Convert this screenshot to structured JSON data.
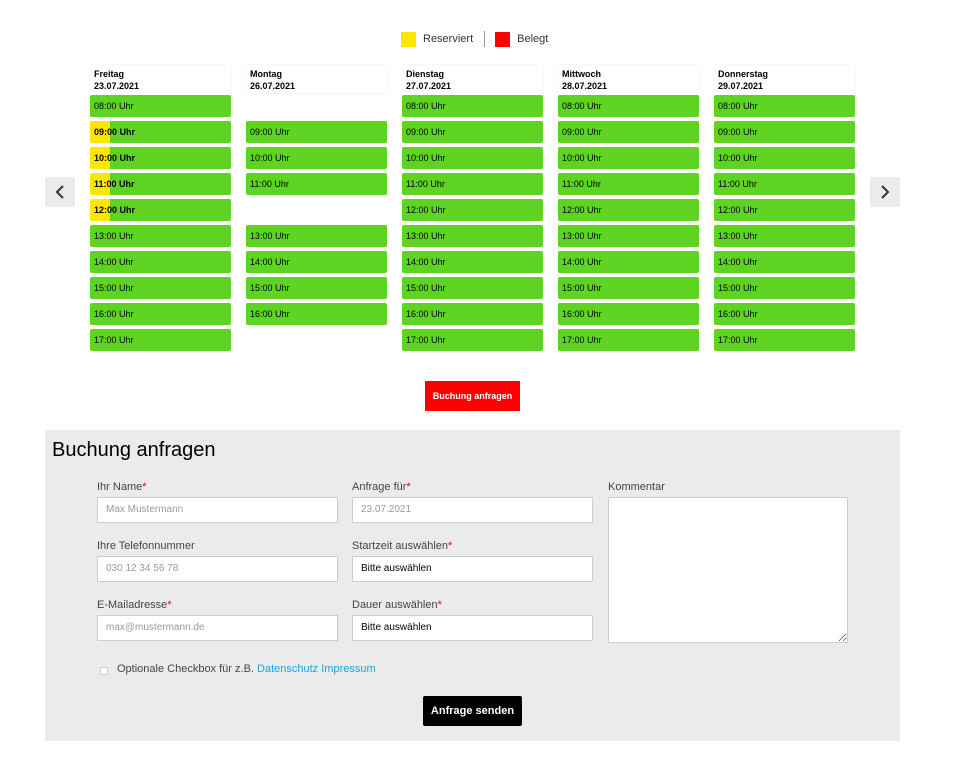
{
  "legend": {
    "reserved": "Reserviert",
    "occupied": "Belegt",
    "reserved_color": "#ffe600",
    "occupied_color": "#ff0000",
    "free_color": "#5fd321"
  },
  "nav": {
    "prev": "‹",
    "next": "›"
  },
  "days": [
    {
      "name": "Freitag",
      "date": "23.07.2021",
      "slots": [
        {
          "t": "08:00 Uhr"
        },
        {
          "t": "09:00 Uhr",
          "r": true
        },
        {
          "t": "10:00 Uhr",
          "r": true
        },
        {
          "t": "11:00 Uhr",
          "r": true
        },
        {
          "t": "12:00 Uhr",
          "r": true
        },
        {
          "t": "13:00 Uhr"
        },
        {
          "t": "14:00 Uhr"
        },
        {
          "t": "15:00 Uhr"
        },
        {
          "t": "16:00 Uhr"
        },
        {
          "t": "17:00 Uhr"
        }
      ]
    },
    {
      "name": "Montag",
      "date": "26.07.2021",
      "slots": [
        null,
        {
          "t": "09:00 Uhr"
        },
        {
          "t": "10:00 Uhr"
        },
        {
          "t": "11:00 Uhr"
        },
        null,
        {
          "t": "13:00 Uhr"
        },
        {
          "t": "14:00 Uhr"
        },
        {
          "t": "15:00 Uhr"
        },
        {
          "t": "16:00 Uhr"
        },
        null
      ]
    },
    {
      "name": "Dienstag",
      "date": "27.07.2021",
      "slots": [
        {
          "t": "08:00 Uhr"
        },
        {
          "t": "09:00 Uhr"
        },
        {
          "t": "10:00 Uhr"
        },
        {
          "t": "11:00 Uhr"
        },
        {
          "t": "12:00 Uhr"
        },
        {
          "t": "13:00 Uhr"
        },
        {
          "t": "14:00 Uhr"
        },
        {
          "t": "15:00 Uhr"
        },
        {
          "t": "16:00 Uhr"
        },
        {
          "t": "17:00 Uhr"
        }
      ]
    },
    {
      "name": "Mittwoch",
      "date": "28.07.2021",
      "slots": [
        {
          "t": "08:00 Uhr"
        },
        {
          "t": "09:00 Uhr"
        },
        {
          "t": "10:00 Uhr"
        },
        {
          "t": "11:00 Uhr"
        },
        {
          "t": "12:00 Uhr"
        },
        {
          "t": "13:00 Uhr"
        },
        {
          "t": "14:00 Uhr"
        },
        {
          "t": "15:00 Uhr"
        },
        {
          "t": "16:00 Uhr"
        },
        {
          "t": "17:00 Uhr"
        }
      ]
    },
    {
      "name": "Donnerstag",
      "date": "29.07.2021",
      "slots": [
        {
          "t": "08:00 Uhr"
        },
        {
          "t": "09:00 Uhr"
        },
        {
          "t": "10:00 Uhr"
        },
        {
          "t": "11:00 Uhr"
        },
        {
          "t": "12:00 Uhr"
        },
        {
          "t": "13:00 Uhr"
        },
        {
          "t": "14:00 Uhr"
        },
        {
          "t": "15:00 Uhr"
        },
        {
          "t": "16:00 Uhr"
        },
        {
          "t": "17:00 Uhr"
        }
      ]
    }
  ],
  "request_button": "Buchung anfragen",
  "form": {
    "title": "Buchung anfragen",
    "name_label": "Ihr Name",
    "name_placeholder": "Max Mustermann",
    "phone_label": "Ihre Telefonnummer",
    "phone_placeholder": "030 12 34 56 78",
    "email_label": "E-Mailadresse",
    "email_placeholder": "max@mustermann.de",
    "date_label": "Anfrage für",
    "date_value": "23.07.2021",
    "start_label": "Startzeit auswählen",
    "start_value": "Bitte auswählen",
    "duration_label": "Dauer auswählen",
    "duration_value": "Bitte auswählen",
    "comment_label": "Kommentar",
    "required_mark": "*",
    "checkbox_text": "Optionale Checkbox für z.B.",
    "privacy_link": "Datenschutz",
    "imprint_link": "Impressum",
    "submit": "Anfrage senden"
  }
}
